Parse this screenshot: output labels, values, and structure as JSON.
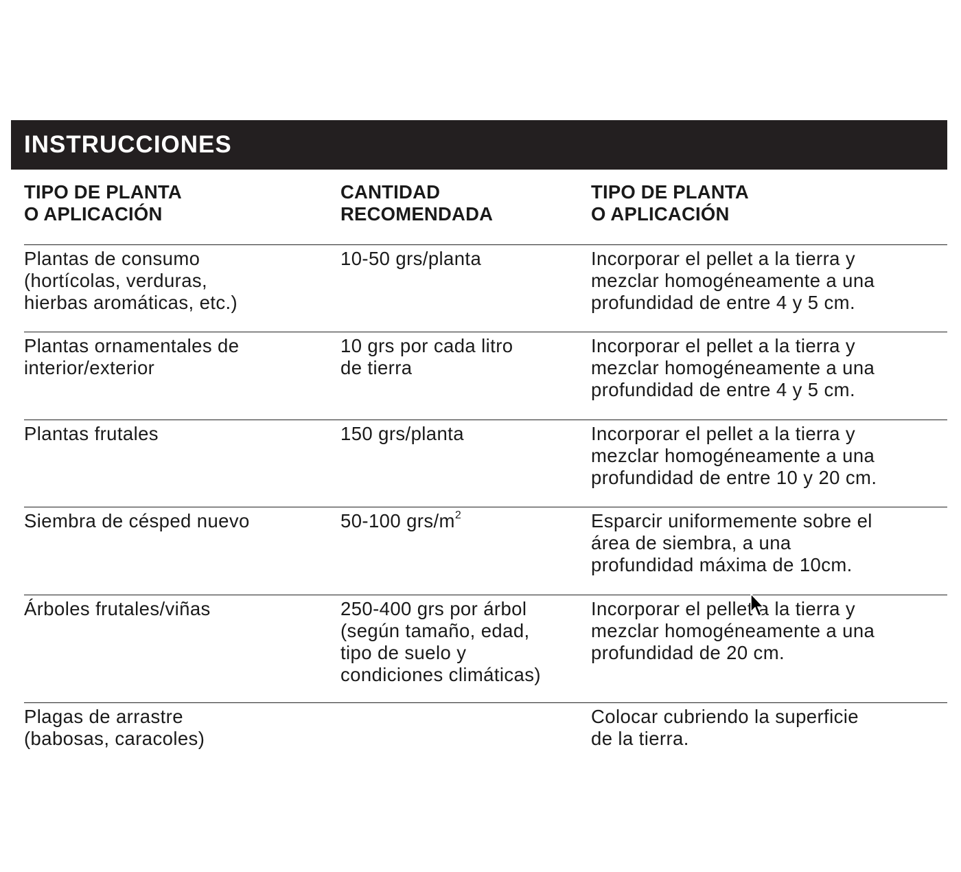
{
  "title": "INSTRUCCIONES",
  "headers": [
    "TIPO DE PLANTA\nO APLICACIÓN",
    "CANTIDAD\nRECOMENDADA",
    "TIPO DE PLANTA\nO APLICACIÓN"
  ],
  "rows": [
    {
      "type": "Plantas de consumo\n(hortícolas, verduras,\nhierbas aromáticas, etc.)",
      "amount": "10-50 grs/planta",
      "amount_sup": "",
      "instructions": "Incorporar el pellet a la tierra y\nmezclar homogéneamente a una\nprofundidad de entre 4 y 5 cm."
    },
    {
      "type": "Plantas ornamentales de\ninterior/exterior",
      "amount": "10 grs por cada litro\nde tierra",
      "amount_sup": "",
      "instructions": "Incorporar el pellet a la tierra y\nmezclar homogéneamente a una\nprofundidad de entre 4 y 5 cm."
    },
    {
      "type": "Plantas frutales",
      "amount": "150 grs/planta",
      "amount_sup": "",
      "instructions": "Incorporar el pellet a la tierra y\nmezclar homogéneamente a una\nprofundidad de entre 10 y 20 cm."
    },
    {
      "type": "Siembra de césped nuevo",
      "amount": "50-100 grs/m",
      "amount_sup": "2",
      "instructions": "Esparcir uniformemente sobre el\nárea de siembra, a una\nprofundidad  máxima de 10cm."
    },
    {
      "type": "Árboles frutales/viñas",
      "amount": "250-400 grs por árbol\n(según tamaño, edad,\ntipo de suelo y\ncondiciones climáticas)",
      "amount_sup": "",
      "instructions": "Incorporar el pellet a la tierra  y\nmezclar homogéneamente a una\nprofundidad de 20 cm."
    },
    {
      "type": "Plagas de arrastre\n(babosas, caracoles)",
      "amount": "",
      "amount_sup": "",
      "instructions": "Colocar cubriendo la superficie\nde la tierra."
    }
  ]
}
